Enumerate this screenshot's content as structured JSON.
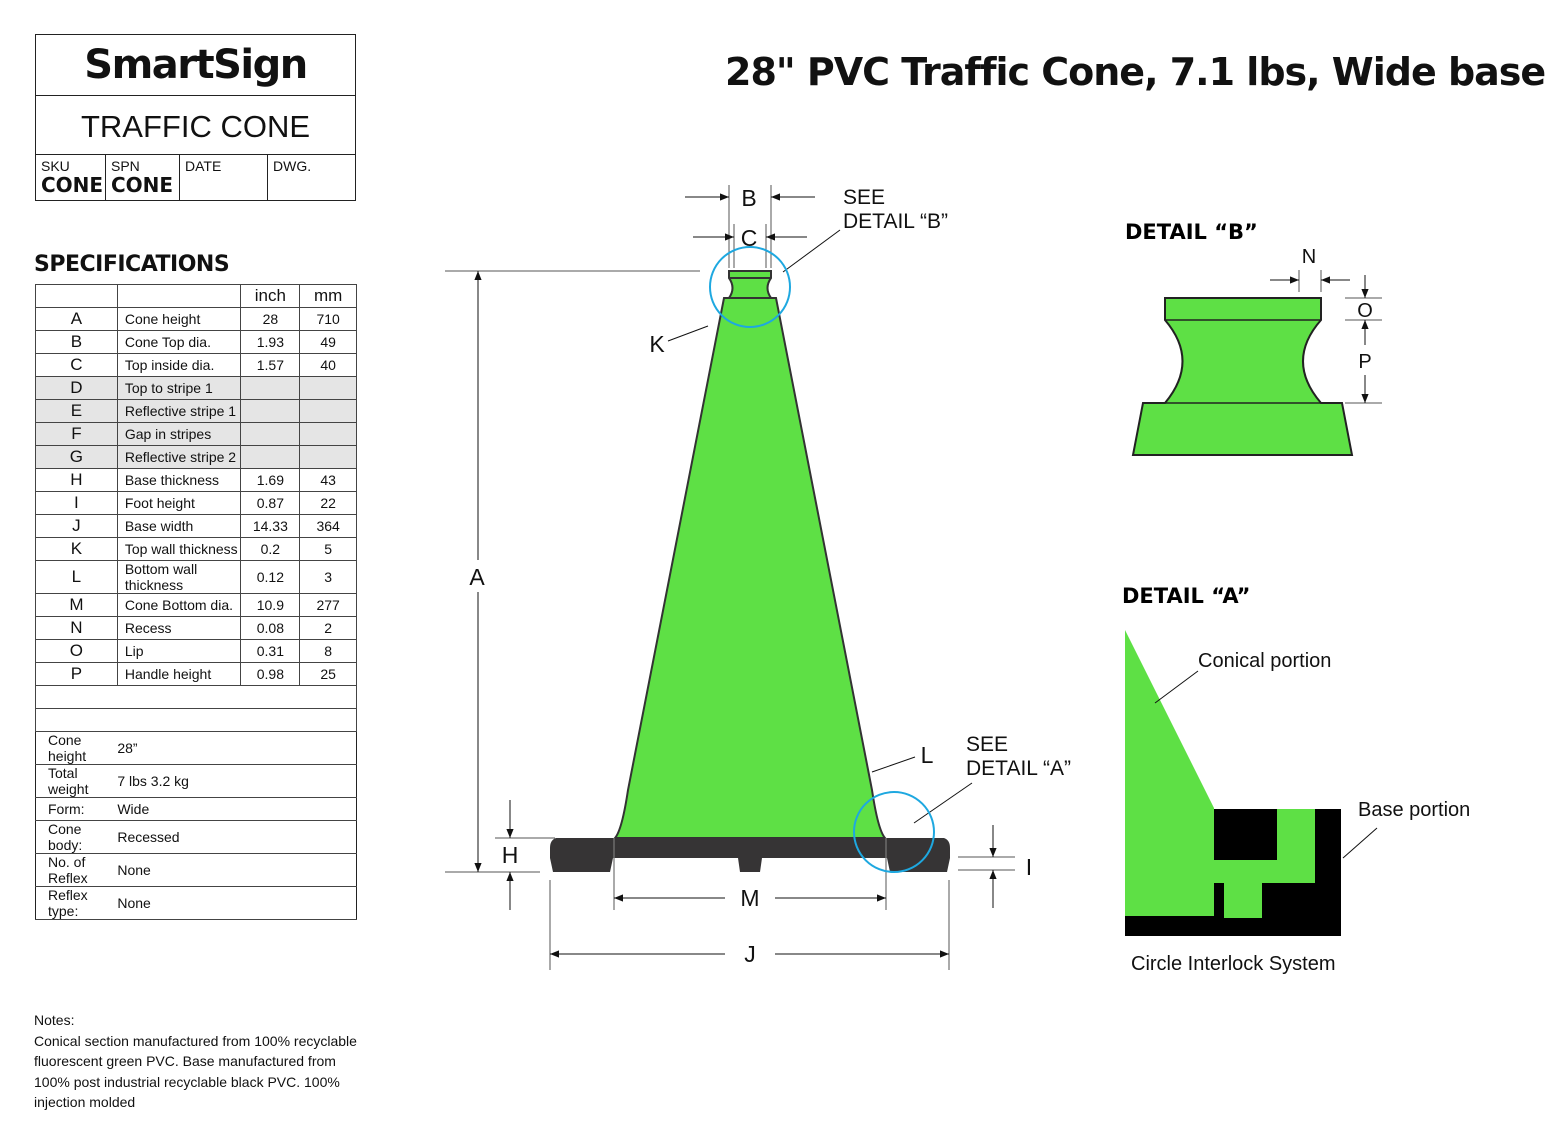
{
  "brand": "SmartSign",
  "product": "TRAFFIC CONE",
  "title_block": {
    "sku_label": "SKU",
    "sku": "CONE",
    "spn_label": "SPN",
    "spn": "CONE",
    "date_label": "DATE",
    "dwg_label": "DWG."
  },
  "main_title": "28\" PVC Traffic Cone, 7.1 lbs, Wide base",
  "specifications": {
    "heading": "SPECIFICATIONS",
    "columns": [
      "",
      "",
      "inch",
      "mm"
    ],
    "rows": [
      {
        "letter": "A",
        "name": "Cone height",
        "inch": "28",
        "mm": "710"
      },
      {
        "letter": "B",
        "name": "Cone Top dia.",
        "inch": "1.93",
        "mm": "49"
      },
      {
        "letter": "C",
        "name": "Top inside dia.",
        "inch": "1.57",
        "mm": "40"
      },
      {
        "letter": "D",
        "name": "Top to stripe 1",
        "inch": "",
        "mm": ""
      },
      {
        "letter": "E",
        "name": "Reflective stripe 1",
        "inch": "",
        "mm": ""
      },
      {
        "letter": "F",
        "name": "Gap in stripes",
        "inch": "",
        "mm": ""
      },
      {
        "letter": "G",
        "name": "Reflective stripe 2",
        "inch": "",
        "mm": ""
      },
      {
        "letter": "H",
        "name": "Base thickness",
        "inch": "1.69",
        "mm": "43"
      },
      {
        "letter": "I",
        "name": "Foot height",
        "inch": "0.87",
        "mm": "22"
      },
      {
        "letter": "J",
        "name": "Base width",
        "inch": "14.33",
        "mm": "364"
      },
      {
        "letter": "K",
        "name": "Top wall thickness",
        "inch": "0.2",
        "mm": "5"
      },
      {
        "letter": "L",
        "name": "Bottom wall thickness",
        "inch": "0.12",
        "mm": "3"
      },
      {
        "letter": "M",
        "name": "Cone Bottom dia.",
        "inch": "10.9",
        "mm": "277"
      },
      {
        "letter": "N",
        "name": "Recess",
        "inch": "0.08",
        "mm": "2"
      },
      {
        "letter": "O",
        "name": "Lip",
        "inch": "0.31",
        "mm": "8"
      },
      {
        "letter": "P",
        "name": "Handle height",
        "inch": "0.98",
        "mm": "25"
      }
    ],
    "info": [
      {
        "key": "Cone height",
        "value": "28”"
      },
      {
        "key": "Total weight",
        "value": "7 lbs   3.2 kg"
      },
      {
        "key": "Form:",
        "value": "Wide"
      },
      {
        "key": "Cone body:",
        "value": "Recessed"
      },
      {
        "key": "No. of Reflex",
        "value": "None"
      },
      {
        "key": "Reflex type:",
        "value": "None"
      }
    ]
  },
  "notes": {
    "heading": "Notes:",
    "text": "Conical section manufactured from 100% recyclable fluorescent green PVC. Base manufactured from 100% post industrial recyclable black PVC. 100% injection molded"
  },
  "drawing": {
    "dims": {
      "A": "A",
      "B": "B",
      "C": "C",
      "H": "H",
      "I": "I",
      "J": "J",
      "K": "K",
      "L": "L",
      "M": "M",
      "N": "N",
      "O": "O",
      "P": "P"
    },
    "see_b": [
      "SEE",
      "DETAIL “B”"
    ],
    "see_a": [
      "SEE",
      "DETAIL “A”"
    ],
    "detail_b_title": "DETAIL “B”",
    "detail_a_title": "DETAIL “A”",
    "conical_portion": "Conical portion",
    "base_portion": "Base portion",
    "caption": "Circle Interlock System"
  },
  "colors": {
    "cone_green": "#5ee045",
    "base_black": "#363435",
    "callout_blue": "#1ea8e0"
  }
}
